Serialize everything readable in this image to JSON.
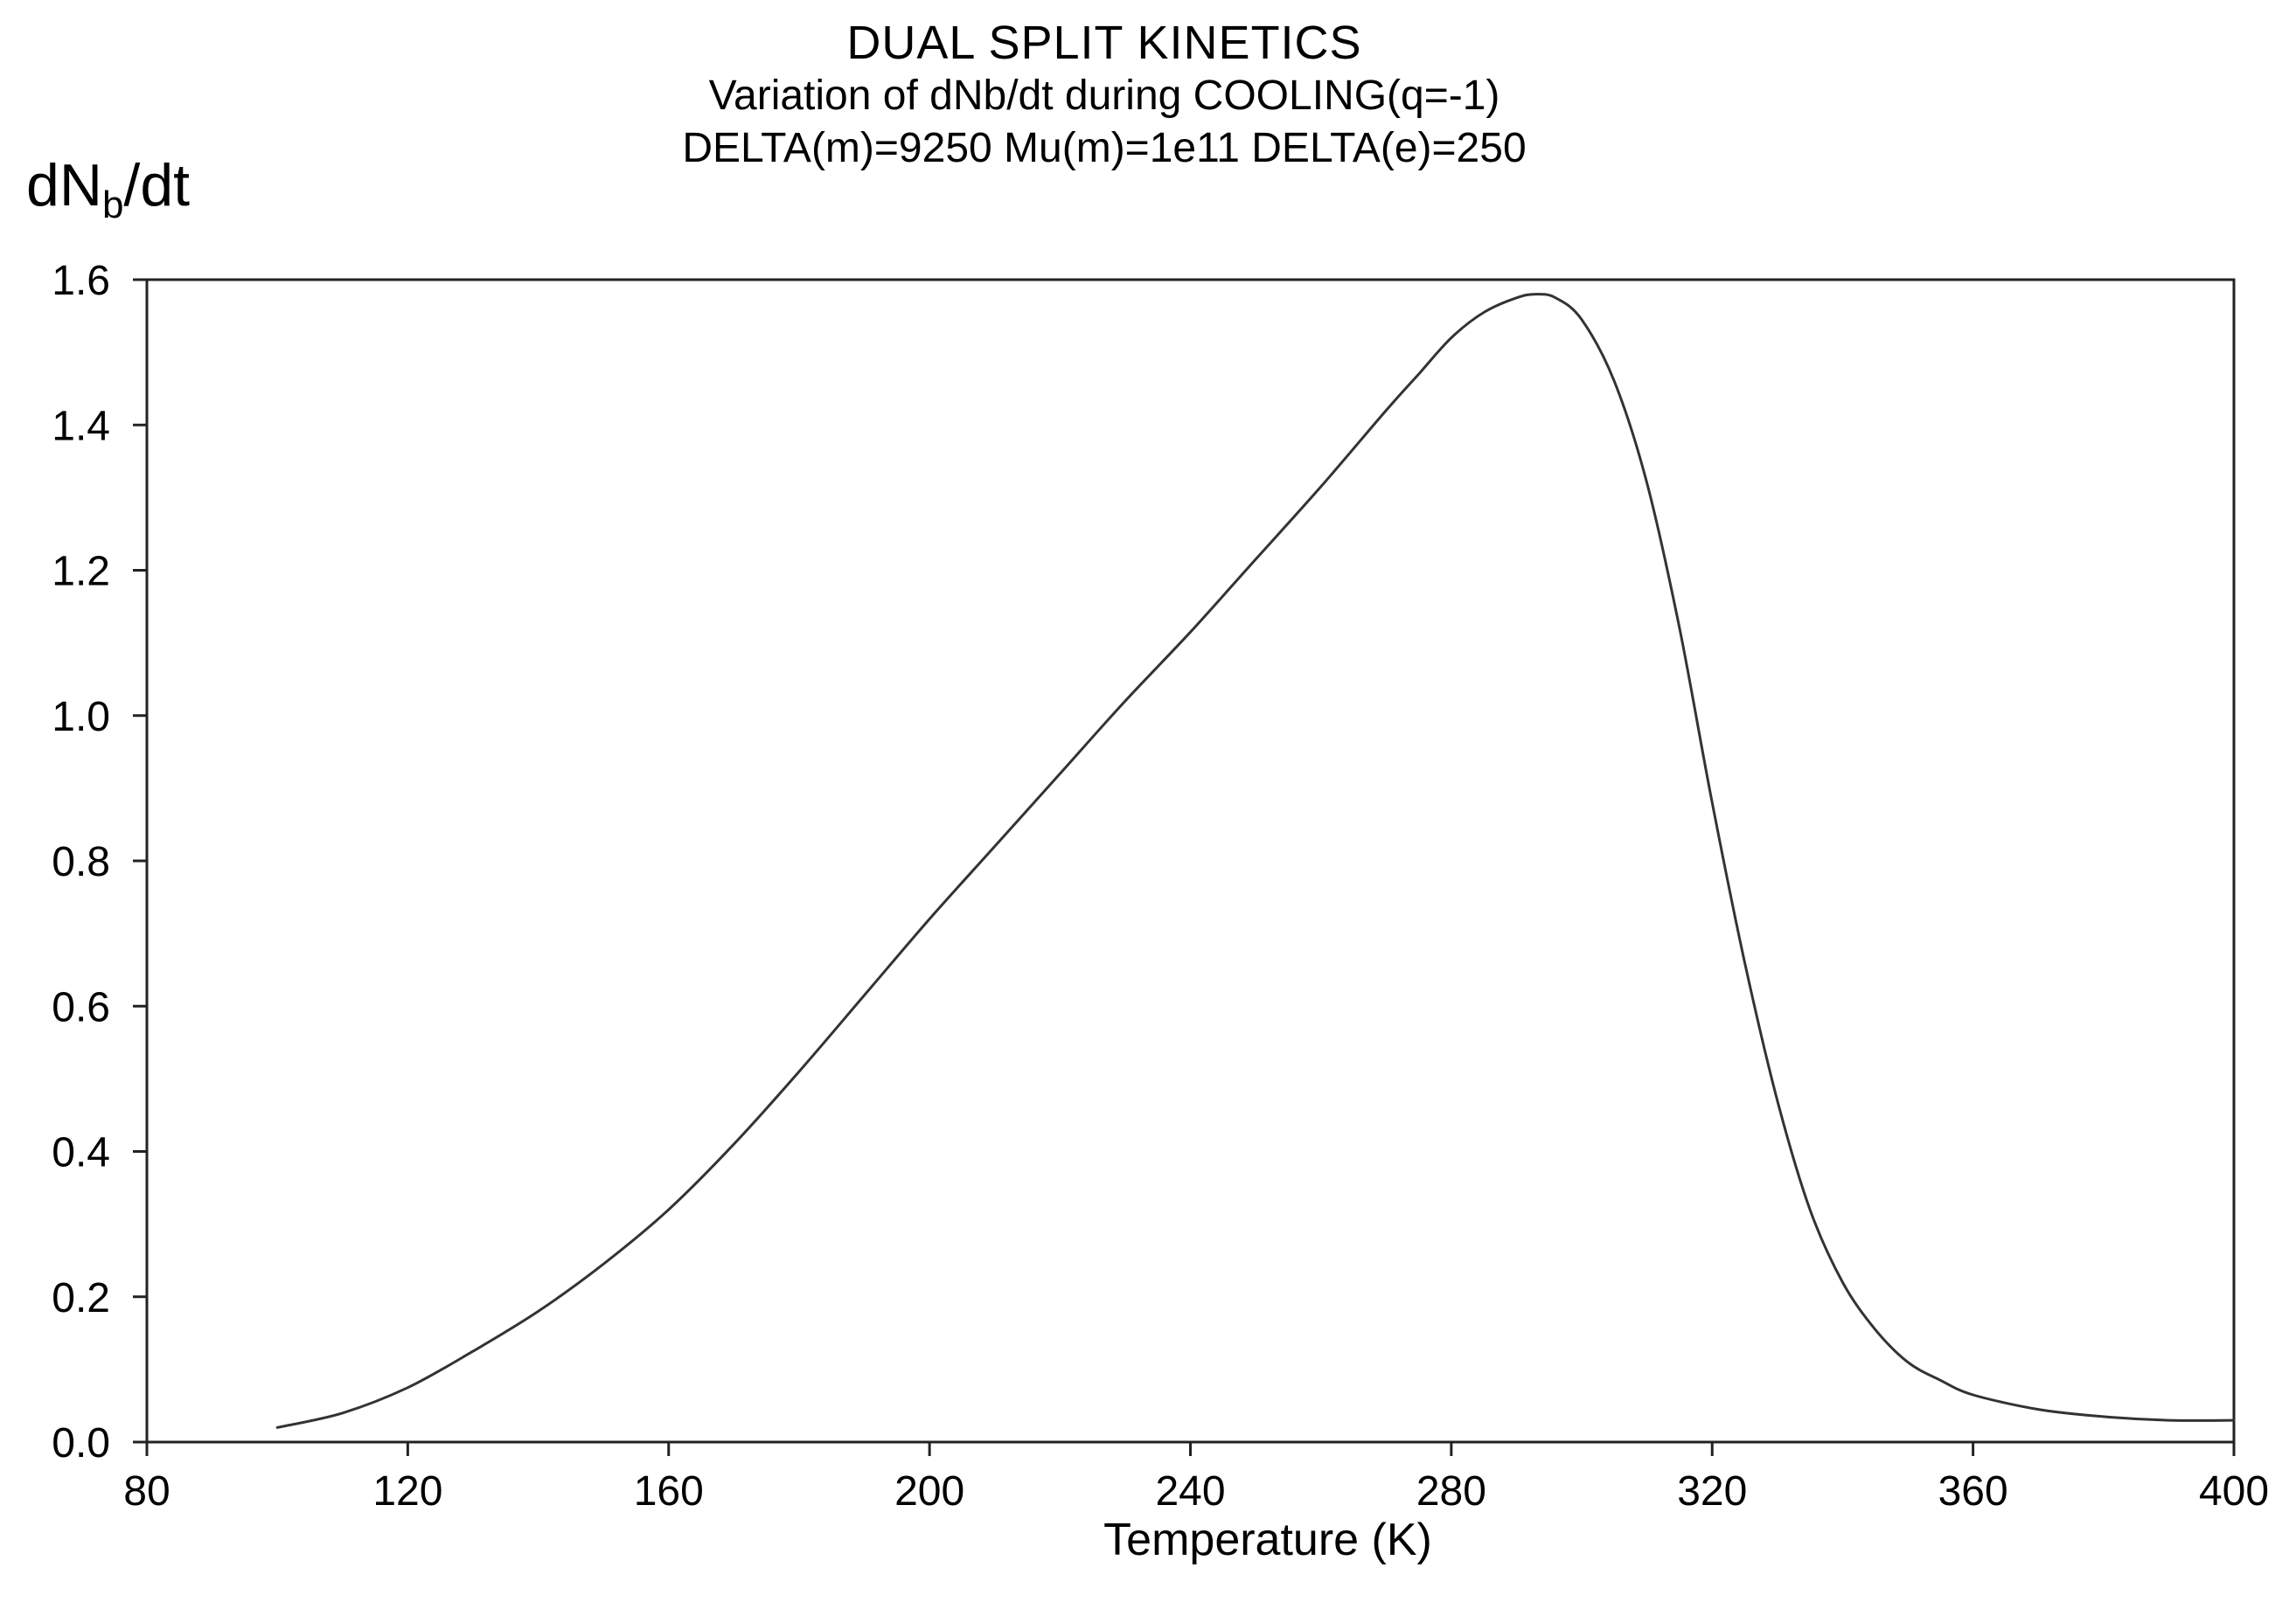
{
  "chart_data": {
    "type": "line",
    "title": "DUAL SPLIT KINETICS",
    "subtitle_lines": [
      "Variation of dNb/dt during COOLING(q=-1)",
      "DELTA(m)=9250 Mu(m)=1e11 DELTA(e)=250"
    ],
    "ylabel": {
      "base": "dN",
      "sub": "b",
      "rest": "/dt"
    },
    "xlabel": "Temperature (K)",
    "xlim": [
      80,
      400
    ],
    "ylim": [
      0.0,
      1.6
    ],
    "xticks": [
      80,
      120,
      160,
      200,
      240,
      280,
      320,
      360,
      400
    ],
    "xtick_labels": [
      "80",
      "120",
      "160",
      "200",
      "240",
      "280",
      "320",
      "360",
      "400"
    ],
    "yticks": [
      0.0,
      0.2,
      0.4,
      0.6,
      0.8,
      1.0,
      1.2,
      1.4,
      1.6
    ],
    "ytick_labels": [
      "0.0",
      "0.2",
      "0.4",
      "0.6",
      "0.8",
      "1.0",
      "1.2",
      "1.4",
      "1.6"
    ],
    "grid": false,
    "series": [
      {
        "name": "dNb/dt",
        "x": [
          100,
          110,
          120,
          130,
          140,
          150,
          160,
          170,
          180,
          190,
          200,
          210,
          220,
          230,
          240,
          250,
          260,
          270,
          275,
          280,
          285,
          290,
          293,
          296,
          300,
          305,
          310,
          315,
          320,
          325,
          330,
          335,
          340,
          345,
          350,
          355,
          360,
          370,
          380,
          390,
          400
        ],
        "y": [
          0.02,
          0.04,
          0.075,
          0.125,
          0.18,
          0.245,
          0.32,
          0.41,
          0.51,
          0.615,
          0.72,
          0.82,
          0.92,
          1.02,
          1.115,
          1.215,
          1.315,
          1.42,
          1.47,
          1.52,
          1.555,
          1.575,
          1.58,
          1.575,
          1.545,
          1.46,
          1.32,
          1.12,
          0.88,
          0.66,
          0.47,
          0.32,
          0.22,
          0.155,
          0.11,
          0.085,
          0.065,
          0.045,
          0.035,
          0.03,
          0.03
        ]
      }
    ],
    "colors": {
      "line": "#333333",
      "axis": "#222222"
    }
  }
}
